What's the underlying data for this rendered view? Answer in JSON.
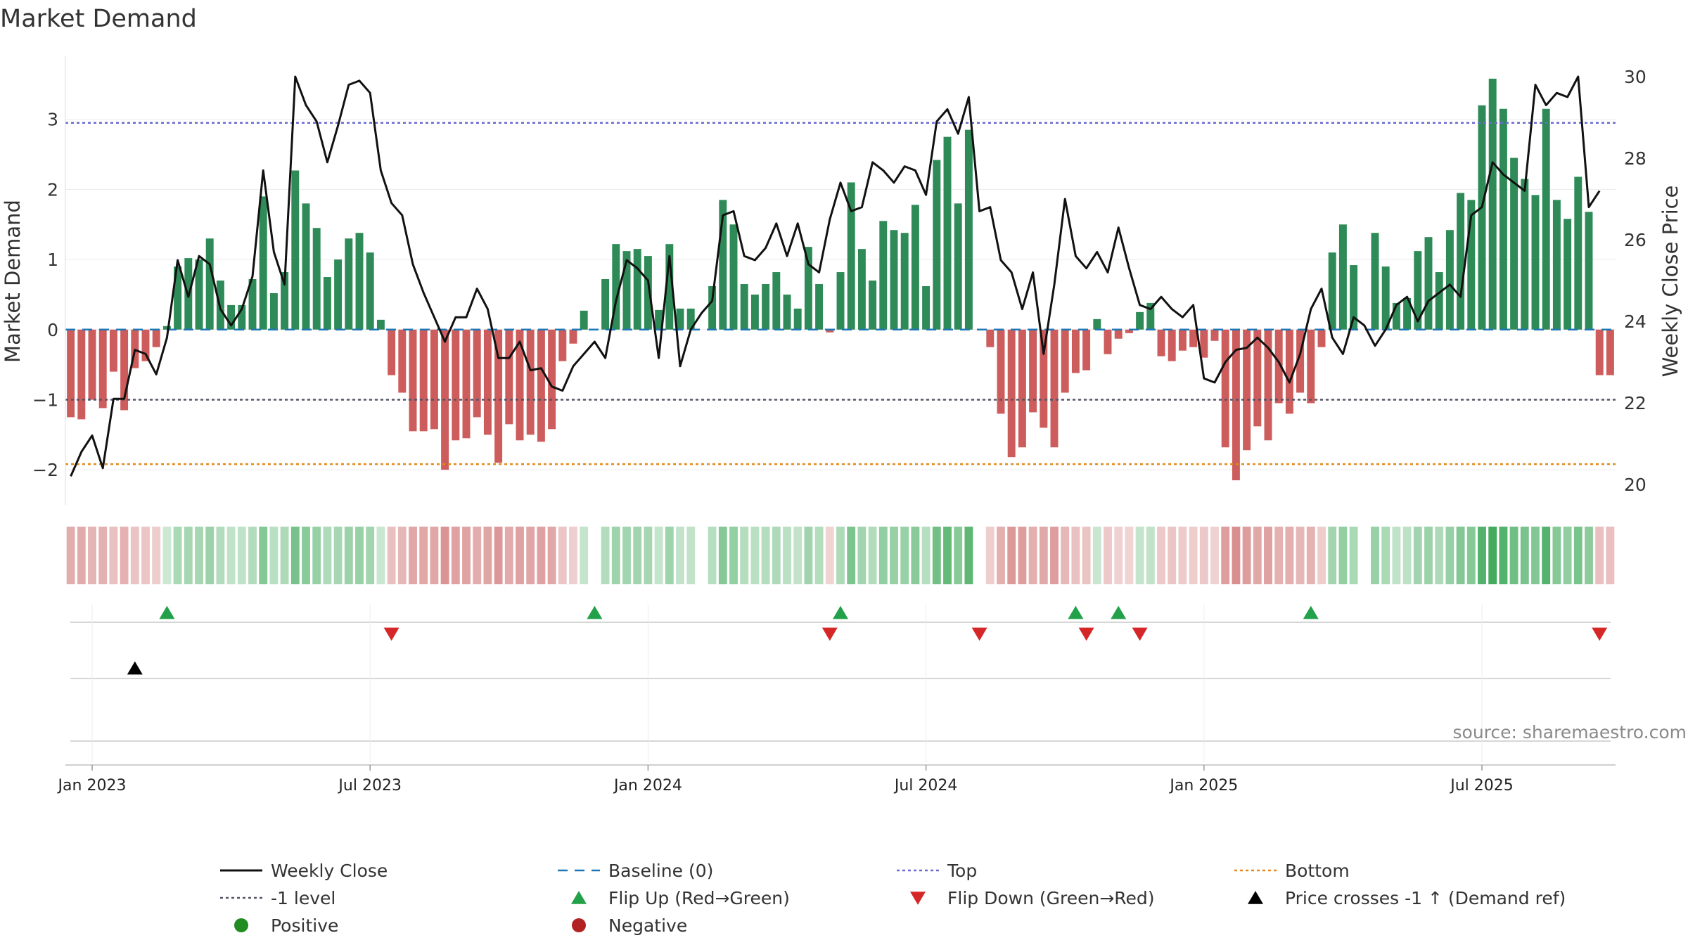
{
  "chart_data": {
    "type": "bar",
    "title": "Market Demand",
    "ylabel_left": "Market Demand",
    "ylabel_right": "Weekly Close Price",
    "ylim_left": [
      -2.5,
      3.9
    ],
    "ylim_right": [
      19.5,
      30.5
    ],
    "yticks_left": [
      3,
      2,
      1,
      0,
      -1,
      -2
    ],
    "yticks_left_labels": [
      "3",
      "2",
      "1",
      "0",
      "−1",
      "−2"
    ],
    "yticks_right": [
      30,
      28,
      26,
      24,
      22,
      20
    ],
    "xticks": [
      "Jan 2023",
      "Jul 2023",
      "Jan 2024",
      "Jul 2024",
      "Jan 2025",
      "Jul 2025"
    ],
    "xticks_week": [
      2,
      28,
      54,
      80,
      106,
      132
    ],
    "reference_lines": {
      "top": 2.95,
      "minus_one": -1,
      "bottom": -1.92,
      "baseline": 0
    },
    "weeks": 145,
    "demand": [
      -1.25,
      -1.28,
      -1.0,
      -1.12,
      -0.6,
      -1.15,
      -0.55,
      -0.45,
      -0.25,
      0.05,
      0.9,
      1.02,
      1.0,
      1.3,
      0.7,
      0.35,
      0.35,
      0.72,
      1.9,
      0.52,
      0.82,
      2.27,
      1.8,
      1.45,
      0.75,
      1.0,
      1.3,
      1.38,
      1.1,
      0.14,
      -0.65,
      -0.9,
      -1.45,
      -1.45,
      -1.42,
      -2.0,
      -1.58,
      -1.55,
      -1.25,
      -1.5,
      -1.9,
      -1.35,
      -1.58,
      -1.5,
      -1.6,
      -1.42,
      -0.45,
      -0.2,
      0.27,
      0.0,
      0.72,
      1.22,
      1.12,
      1.15,
      1.05,
      0.28,
      1.22,
      0.3,
      0.3,
      0.0,
      0.62,
      1.85,
      1.5,
      0.65,
      0.5,
      0.65,
      0.82,
      0.5,
      0.3,
      1.18,
      0.65,
      -0.04,
      0.82,
      2.1,
      1.15,
      0.7,
      1.55,
      1.42,
      1.38,
      1.78,
      0.62,
      2.42,
      2.75,
      1.8,
      2.85,
      0.0,
      -0.25,
      -1.2,
      -1.82,
      -1.68,
      -1.18,
      -1.4,
      -1.68,
      -0.9,
      -0.62,
      -0.58,
      0.15,
      -0.35,
      -0.13,
      -0.05,
      0.25,
      0.38,
      -0.38,
      -0.45,
      -0.3,
      -0.25,
      -0.4,
      -0.16,
      -1.68,
      -2.15,
      -1.72,
      -1.38,
      -1.58,
      -1.05,
      -1.2,
      -0.9,
      -1.05,
      -0.25,
      1.1,
      1.5,
      0.92,
      0.0,
      1.38,
      0.9,
      0.38,
      0.45,
      1.12,
      1.32,
      0.82,
      1.42,
      1.95,
      1.85,
      3.2,
      3.58,
      3.15,
      2.45,
      2.15,
      1.92,
      3.15,
      1.85,
      1.58,
      2.18,
      1.68,
      -0.65,
      -0.65
    ],
    "weekly_close": [
      20.2,
      20.8,
      21.2,
      20.4,
      22.1,
      22.1,
      23.3,
      23.2,
      22.7,
      23.6,
      25.5,
      24.6,
      25.6,
      25.4,
      24.3,
      23.9,
      24.3,
      25.1,
      27.7,
      25.7,
      24.9,
      30.0,
      29.3,
      28.9,
      27.9,
      28.8,
      29.8,
      29.9,
      29.6,
      27.7,
      26.9,
      26.6,
      25.4,
      24.7,
      24.1,
      23.5,
      24.1,
      24.1,
      24.8,
      24.3,
      23.1,
      23.1,
      23.5,
      22.8,
      22.85,
      22.4,
      22.3,
      22.9,
      23.2,
      23.5,
      23.1,
      24.5,
      25.5,
      25.3,
      25.0,
      23.1,
      25.6,
      22.9,
      23.8,
      24.2,
      24.5,
      26.6,
      26.7,
      25.6,
      25.5,
      25.8,
      26.4,
      25.6,
      26.4,
      25.4,
      25.2,
      26.5,
      27.4,
      26.7,
      26.8,
      27.9,
      27.7,
      27.4,
      27.8,
      27.7,
      27.1,
      28.9,
      29.2,
      28.6,
      29.5,
      26.7,
      26.8,
      25.5,
      25.2,
      24.3,
      25.2,
      23.2,
      24.9,
      27.0,
      25.6,
      25.3,
      25.7,
      25.2,
      26.3,
      25.3,
      24.4,
      24.3,
      24.6,
      24.3,
      24.1,
      24.4,
      22.6,
      22.5,
      23.0,
      23.3,
      23.35,
      23.6,
      23.35,
      23.0,
      22.5,
      23.2,
      24.3,
      24.8,
      23.6,
      23.2,
      24.1,
      23.9,
      23.4,
      23.8,
      24.4,
      24.6,
      24.0,
      24.5,
      24.7,
      24.9,
      24.6,
      26.6,
      26.8,
      27.9,
      27.6,
      27.4,
      27.2,
      29.8,
      29.3,
      29.6,
      29.5,
      30.0,
      26.8,
      27.2
    ],
    "flip_up_weeks": [
      9,
      49,
      72,
      94,
      98,
      116
    ],
    "flip_down_weeks": [
      30,
      71,
      85,
      95,
      100,
      143
    ],
    "price_cross_weeks": [
      6
    ],
    "colors": {
      "positive_bar": "#2e8b57",
      "negative_bar": "#cd5c5c",
      "weekly_close": "#111111",
      "baseline": "#1f77b4",
      "top": "#6a6ad0",
      "minus_one": "#555566",
      "bottom": "#e08a1e",
      "flip_up": "#22a04a",
      "flip_down": "#d62728",
      "price_cross": "#000000",
      "positive_dot": "#228b22",
      "negative_dot": "#b22222",
      "heat_positive": "#3aa655",
      "heat_negative": "#c65858"
    },
    "legend": [
      {
        "label": "Weekly Close",
        "marker": "line-solid",
        "color": "#111111"
      },
      {
        "label": "Baseline (0)",
        "marker": "line-dash",
        "color": "#1f77b4"
      },
      {
        "label": "Top",
        "marker": "line-dot",
        "color": "#6a6ad0"
      },
      {
        "label": "Bottom",
        "marker": "line-dot",
        "color": "#e08a1e"
      },
      {
        "label": "-1 level",
        "marker": "line-dot",
        "color": "#555566"
      },
      {
        "label": "Flip Up (Red→Green)",
        "marker": "triangle-up",
        "color": "#22a04a"
      },
      {
        "label": "Flip Down (Green→Red)",
        "marker": "triangle-down",
        "color": "#d62728"
      },
      {
        "label": "Price crosses -1 ↑ (Demand ref)",
        "marker": "triangle-up",
        "color": "#000000"
      },
      {
        "label": "Positive",
        "marker": "dot",
        "color": "#228b22"
      },
      {
        "label": "Negative",
        "marker": "dot",
        "color": "#b22222"
      }
    ],
    "source": "source: sharemaestro.com"
  }
}
